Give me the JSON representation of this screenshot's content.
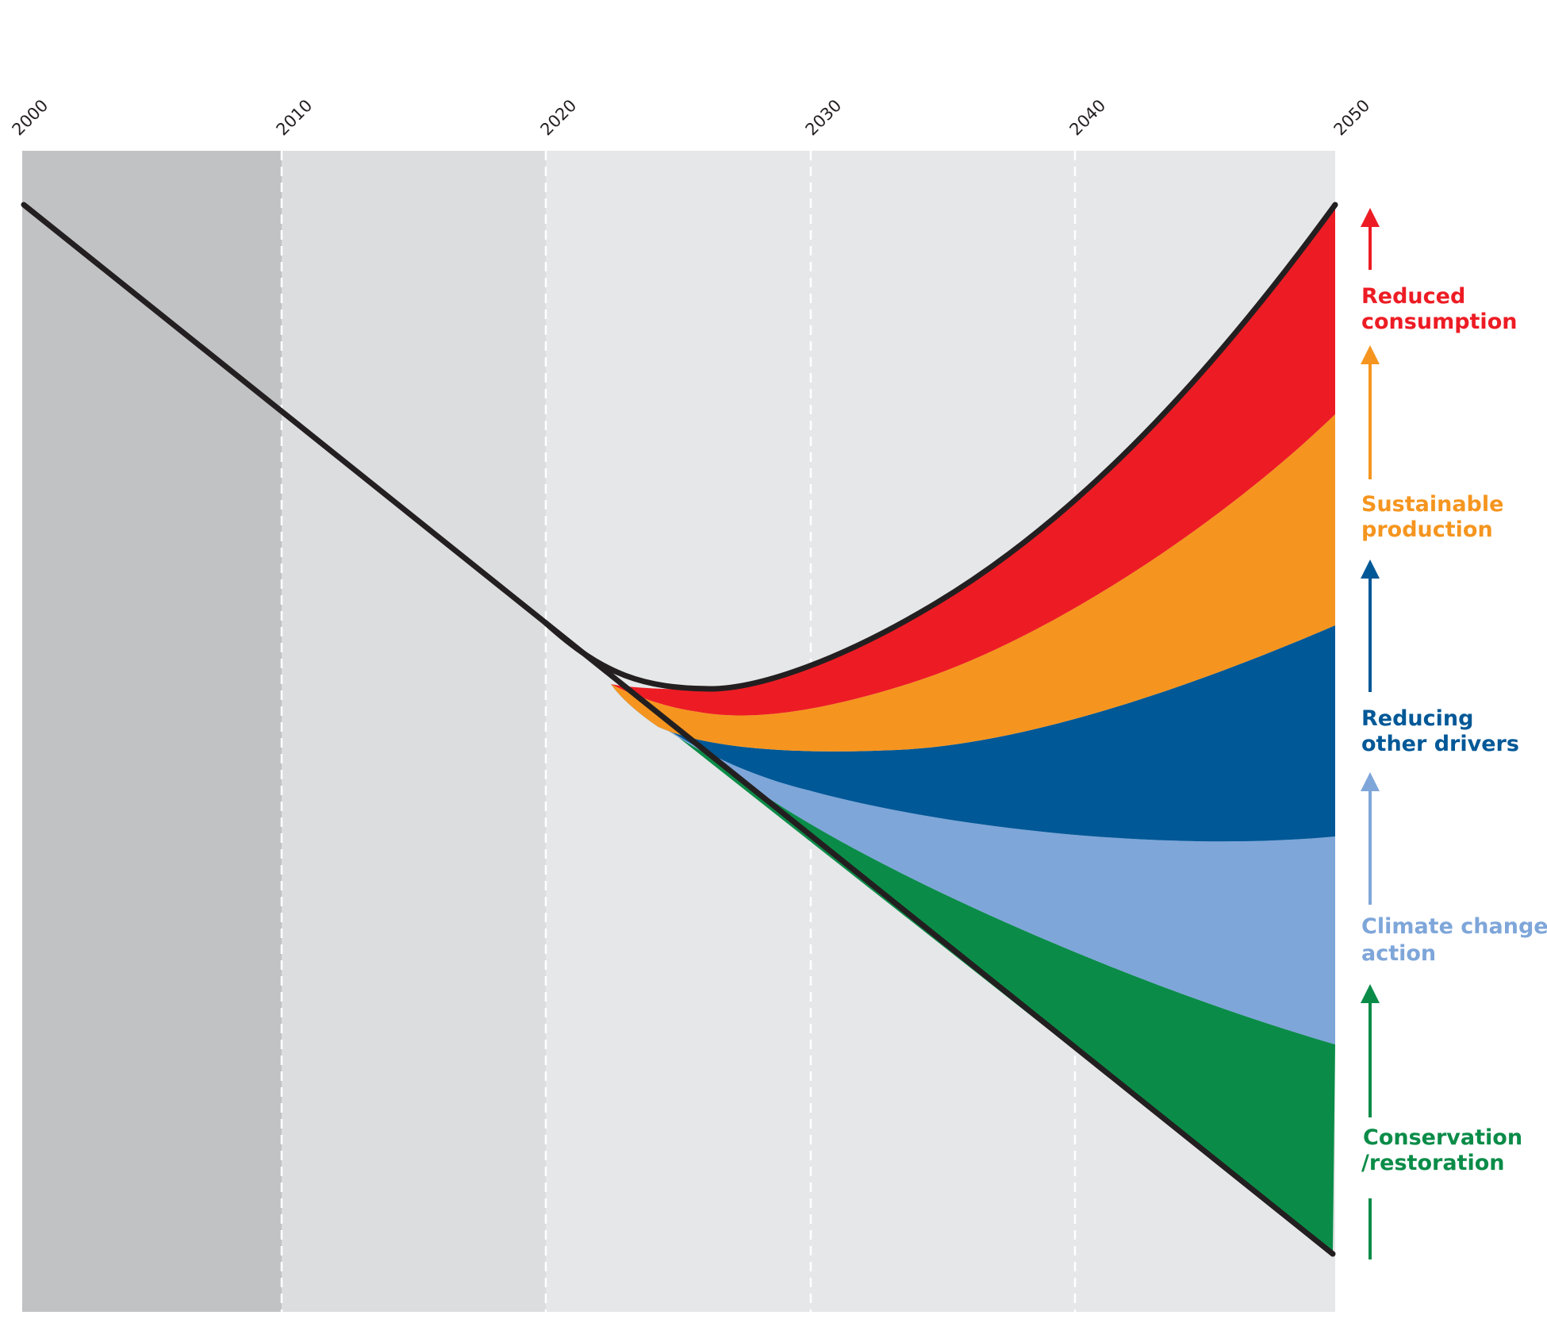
{
  "chart_data": {
    "type": "area",
    "title": "",
    "xlabel": "",
    "ylabel": "",
    "x_ticks": [
      "2000",
      "2010",
      "2020",
      "2030",
      "2040",
      "2050"
    ],
    "xlim": [
      2000,
      2050
    ],
    "ylim": [
      0,
      100
    ],
    "grid": "dashed vertical gridlines at each decade",
    "trends": {
      "historical": {
        "x": [
          2000,
          2020
        ],
        "y": [
          92,
          55
        ]
      },
      "business_as_usual_lower_bound": {
        "x": [
          2020,
          2050
        ],
        "y": [
          55,
          0
        ]
      },
      "bend_the_curve_upper_bound": {
        "x": [
          2020,
          2023,
          2026,
          2030,
          2035,
          2040,
          2045,
          2050
        ],
        "y": [
          55,
          49,
          47,
          49,
          56,
          67,
          80,
          92
        ]
      }
    },
    "bands_at_2050": [
      {
        "name": "Conservation /restoration",
        "color": "#0a8c48",
        "from": 0,
        "to": 18
      },
      {
        "name": "Climate change action",
        "color": "#7ea6d9",
        "from": 18,
        "to": 37
      },
      {
        "name": "Reducing other drivers",
        "color": "#005897",
        "from": 37,
        "to": 55
      },
      {
        "name": "Sustainable production",
        "color": "#f5951f",
        "from": 55,
        "to": 74
      },
      {
        "name": "Reduced consumption",
        "color": "#ed1c24",
        "from": 74,
        "to": 92
      }
    ]
  },
  "legend": {
    "placement": "right",
    "items": [
      {
        "line1": "Reduced",
        "line2": "consumption",
        "color": "#ed1c24"
      },
      {
        "line1": "Sustainable",
        "line2": "production",
        "color": "#f5951f"
      },
      {
        "line1": "Reducing",
        "line2": "other drivers",
        "color": "#005897"
      },
      {
        "line1": "Climate change",
        "line2": "action",
        "color": "#7ea6d9"
      },
      {
        "line1": "Conservation",
        "line2": "/restoration",
        "color": "#0a8c48"
      }
    ]
  },
  "colors": {
    "panel_2000s": "#c1c2c4",
    "panel_2010s": "#dcdddf",
    "panel_future": "#e6e7e8",
    "trend_line": "#231f20",
    "gridline": "#ffffff"
  }
}
